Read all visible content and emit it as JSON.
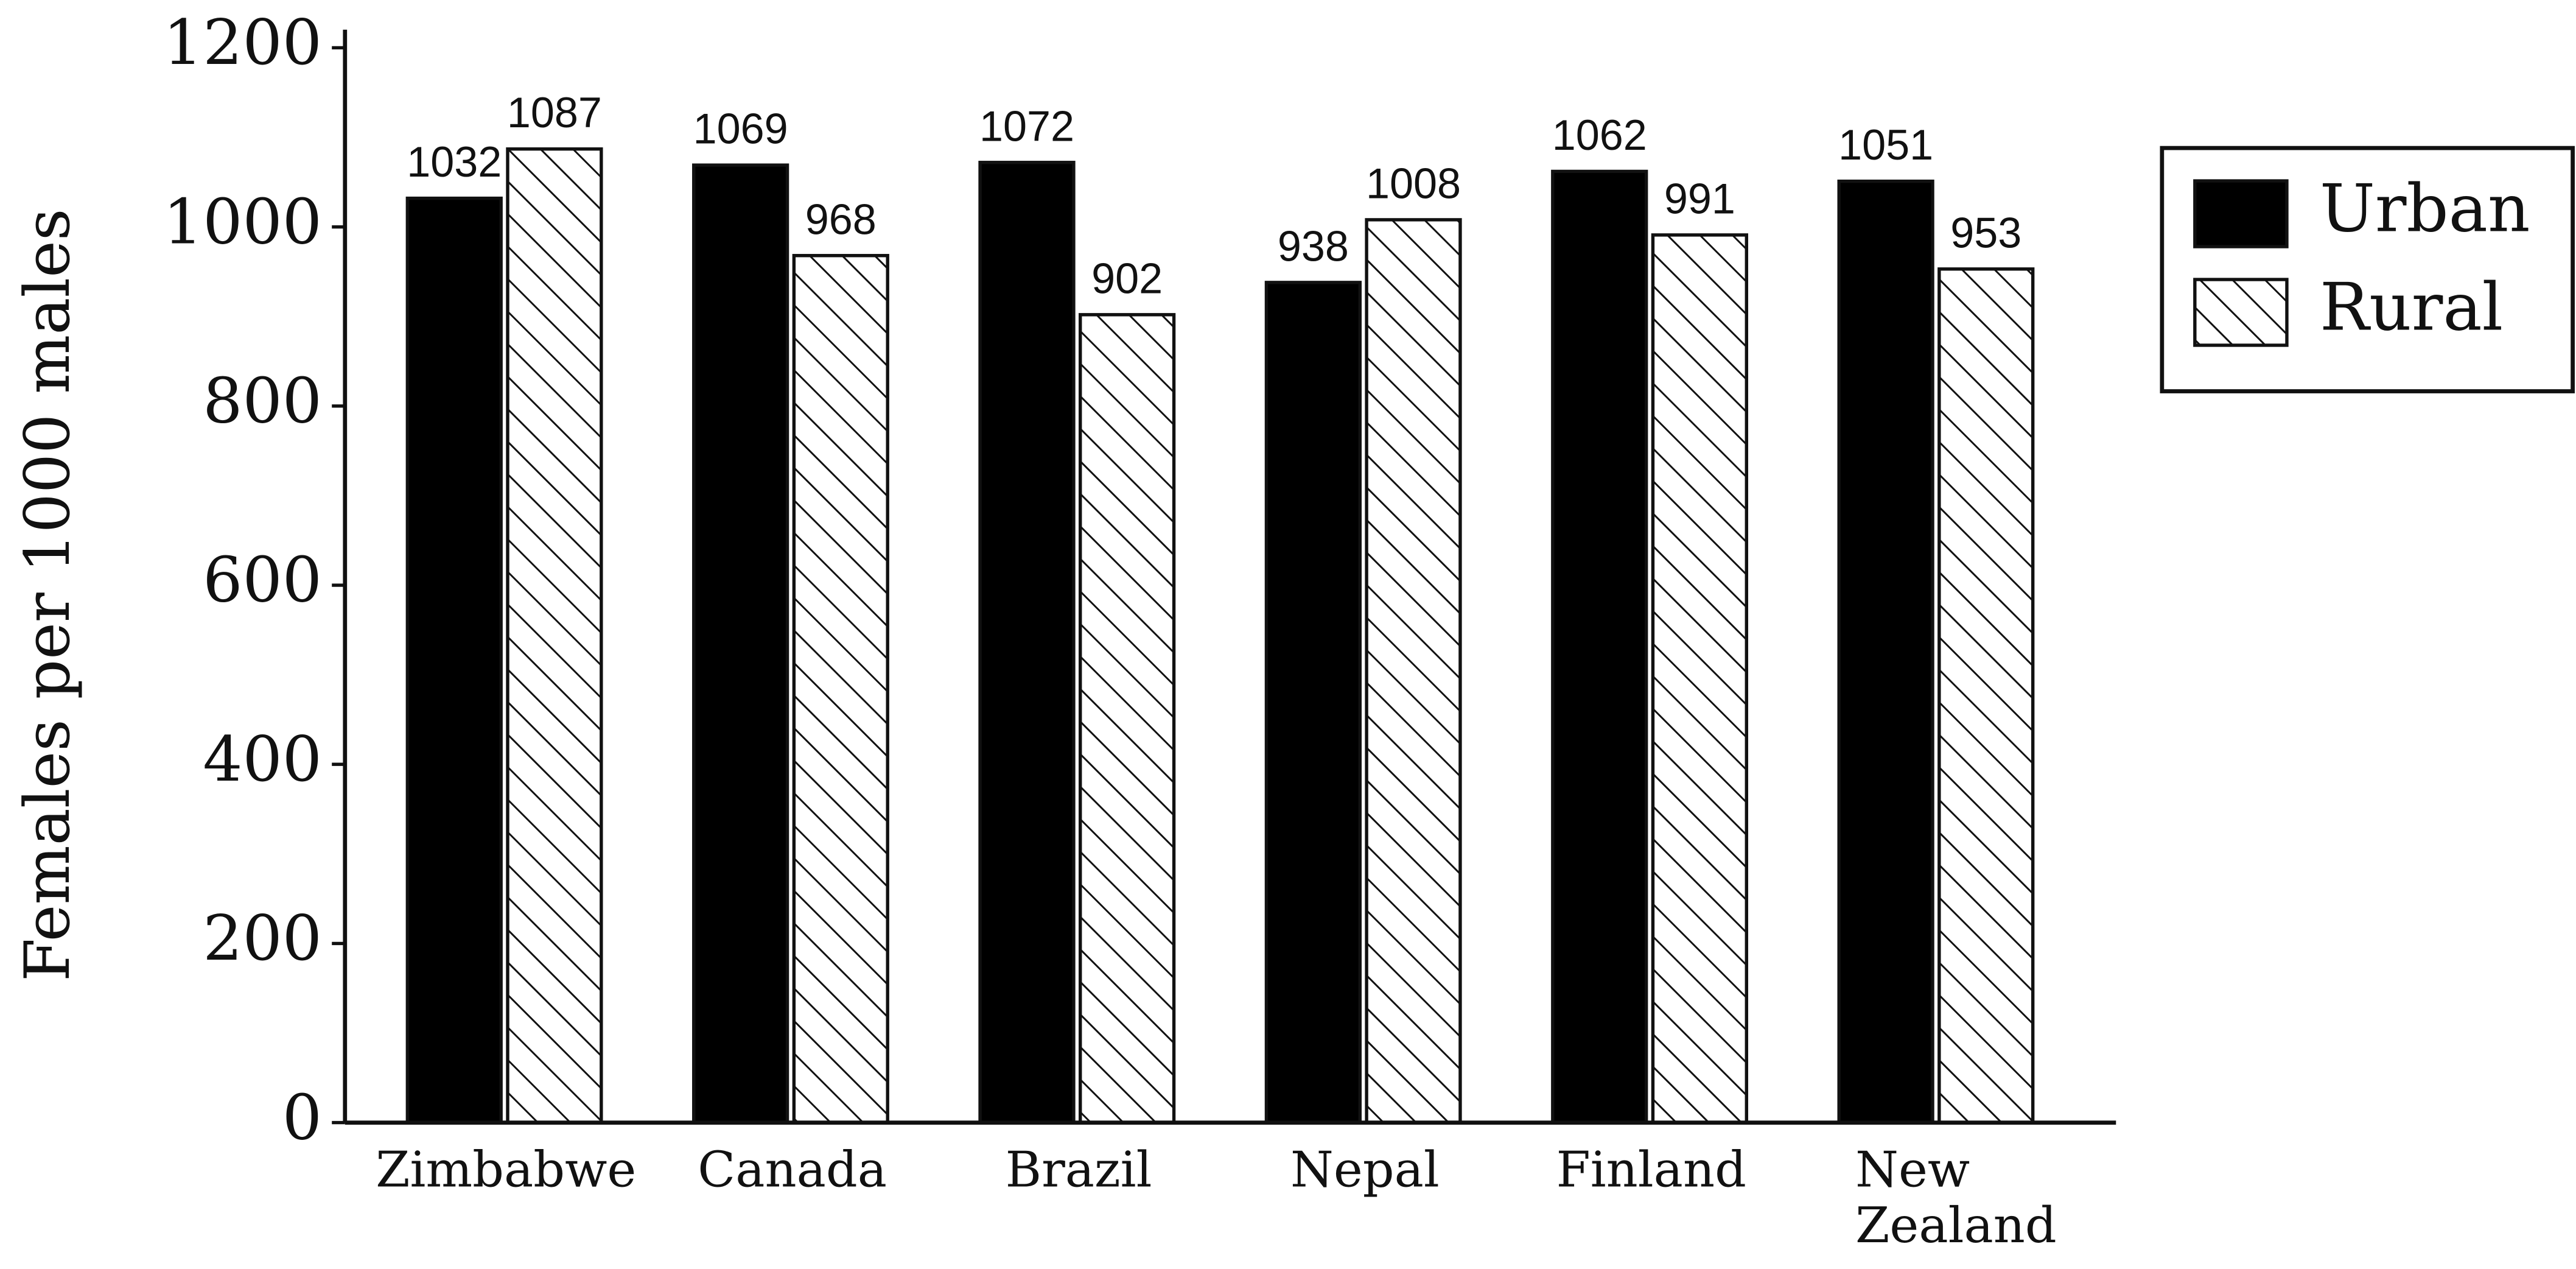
{
  "chart_data": {
    "type": "bar",
    "y_label": "Females per 1000 males",
    "categories": [
      "Zimbabwe",
      "Canada",
      "Brazil",
      "Nepal",
      "Finland",
      "New Zealand"
    ],
    "series": [
      {
        "name": "Urban",
        "color": "#000000",
        "values": [
          1032,
          1069,
          1072,
          938,
          1062,
          1051
        ]
      },
      {
        "name": "Rural",
        "color": "#ffffff",
        "hatch": true,
        "values": [
          1087,
          968,
          902,
          1008,
          991,
          953
        ]
      }
    ],
    "ylim": [
      0,
      1200
    ],
    "yticks": [
      0,
      200,
      400,
      600,
      800,
      1000,
      1200
    ],
    "legend": "upper right"
  }
}
